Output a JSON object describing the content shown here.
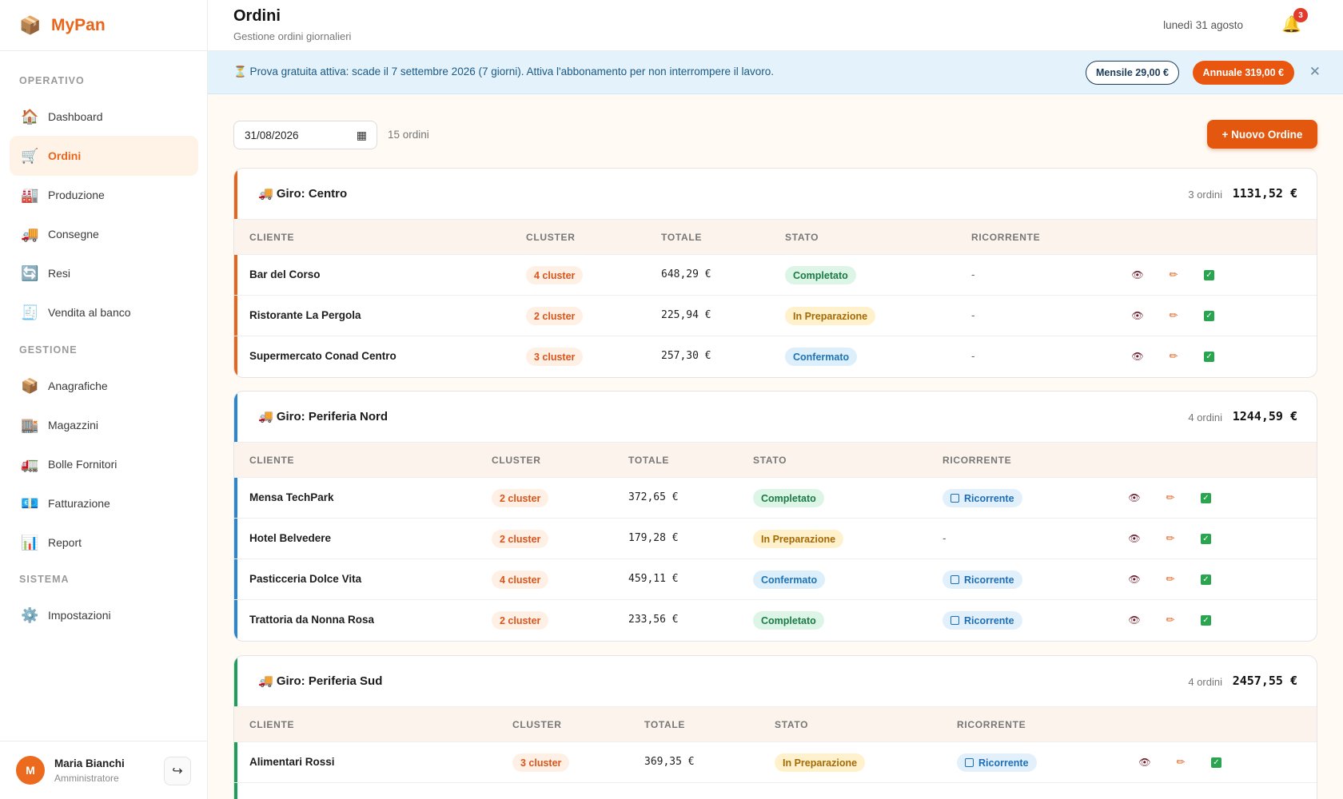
{
  "app": {
    "name": "MyPan",
    "logo_icon": "box-icon"
  },
  "sidebar": {
    "sections": [
      {
        "label": "OPERATIVO"
      },
      {
        "label": "GESTIONE"
      },
      {
        "label": "SISTEMA"
      }
    ],
    "items": [
      {
        "label": "Dashboard",
        "icon": "🏠"
      },
      {
        "label": "Ordini",
        "icon": "🛒",
        "active": true
      },
      {
        "label": "Produzione",
        "icon": "🏭"
      },
      {
        "label": "Consegne",
        "icon": "🚚"
      },
      {
        "label": "Resi",
        "icon": "🔄"
      },
      {
        "label": "Vendita al banco",
        "icon": "🧾"
      },
      {
        "label": "Anagrafiche",
        "icon": "📦"
      },
      {
        "label": "Magazzini",
        "icon": "🏬"
      },
      {
        "label": "Bolle Fornitori",
        "icon": "🚛"
      },
      {
        "label": "Fatturazione",
        "icon": "💶"
      },
      {
        "label": "Report",
        "icon": "📊"
      },
      {
        "label": "Impostazioni",
        "icon": "⚙️"
      }
    ],
    "user": {
      "initial": "M",
      "name": "Maria Bianchi",
      "role": "Amministratore",
      "logout_icon": "↪"
    }
  },
  "header": {
    "title": "Ordini",
    "subtitle": "Gestione ordini giornalieri",
    "date": "lunedì 31 agosto",
    "notifications": "3"
  },
  "banner": {
    "text": "⏳ Prova gratuita attiva: scade il 7 settembre 2026 (7 giorni). Attiva l'abbonamento per non interrompere il lavoro.",
    "monthly": "Mensile 29,00 €",
    "yearly": "Annuale 319,00 €",
    "close": "✕"
  },
  "toolbar": {
    "date_value": "31/08/2026",
    "count": "15 ordini",
    "new_order": "+ Nuovo Ordine"
  },
  "columns": [
    "CLIENTE",
    "CLUSTER",
    "TOTALE",
    "STATO",
    "RICORRENTE"
  ],
  "routes": [
    {
      "name": "🚚 Giro: Centro",
      "count": "3 ordini",
      "total": "1131,52 €",
      "accent": "#e8661c",
      "orders": [
        {
          "client": "Bar del Corso",
          "cluster": "4 cluster",
          "total": "648,29 €",
          "status": "Completato",
          "recurring": "-"
        },
        {
          "client": "Ristorante La Pergola",
          "cluster": "2 cluster",
          "total": "225,94 €",
          "status": "In Preparazione",
          "recurring": "-"
        },
        {
          "client": "Supermercato Conad Centro",
          "cluster": "3 cluster",
          "total": "257,30 €",
          "status": "Confermato",
          "recurring": "-"
        }
      ]
    },
    {
      "name": "🚚 Giro: Periferia Nord",
      "count": "4 ordini",
      "total": "1244,59 €",
      "accent": "#2b86d0",
      "orders": [
        {
          "client": "Mensa TechPark",
          "cluster": "2 cluster",
          "total": "372,65 €",
          "status": "Completato",
          "recurring": "Ricorrente"
        },
        {
          "client": "Hotel Belvedere",
          "cluster": "2 cluster",
          "total": "179,28 €",
          "status": "In Preparazione",
          "recurring": "-"
        },
        {
          "client": "Pasticceria Dolce Vita",
          "cluster": "4 cluster",
          "total": "459,11 €",
          "status": "Confermato",
          "recurring": "Ricorrente"
        },
        {
          "client": "Trattoria da Nonna Rosa",
          "cluster": "2 cluster",
          "total": "233,56 €",
          "status": "Completato",
          "recurring": "Ricorrente"
        }
      ]
    },
    {
      "name": "🚚 Giro: Periferia Sud",
      "count": "4 ordini",
      "total": "2457,55 €",
      "accent": "#1e9e5a",
      "orders": [
        {
          "client": "Alimentari Rossi",
          "cluster": "3 cluster",
          "total": "369,35 €",
          "status": "In Preparazione",
          "recurring": "Ricorrente"
        }
      ]
    }
  ],
  "actions": {
    "view": "👁",
    "edit": "✏",
    "confirm": "✓"
  }
}
